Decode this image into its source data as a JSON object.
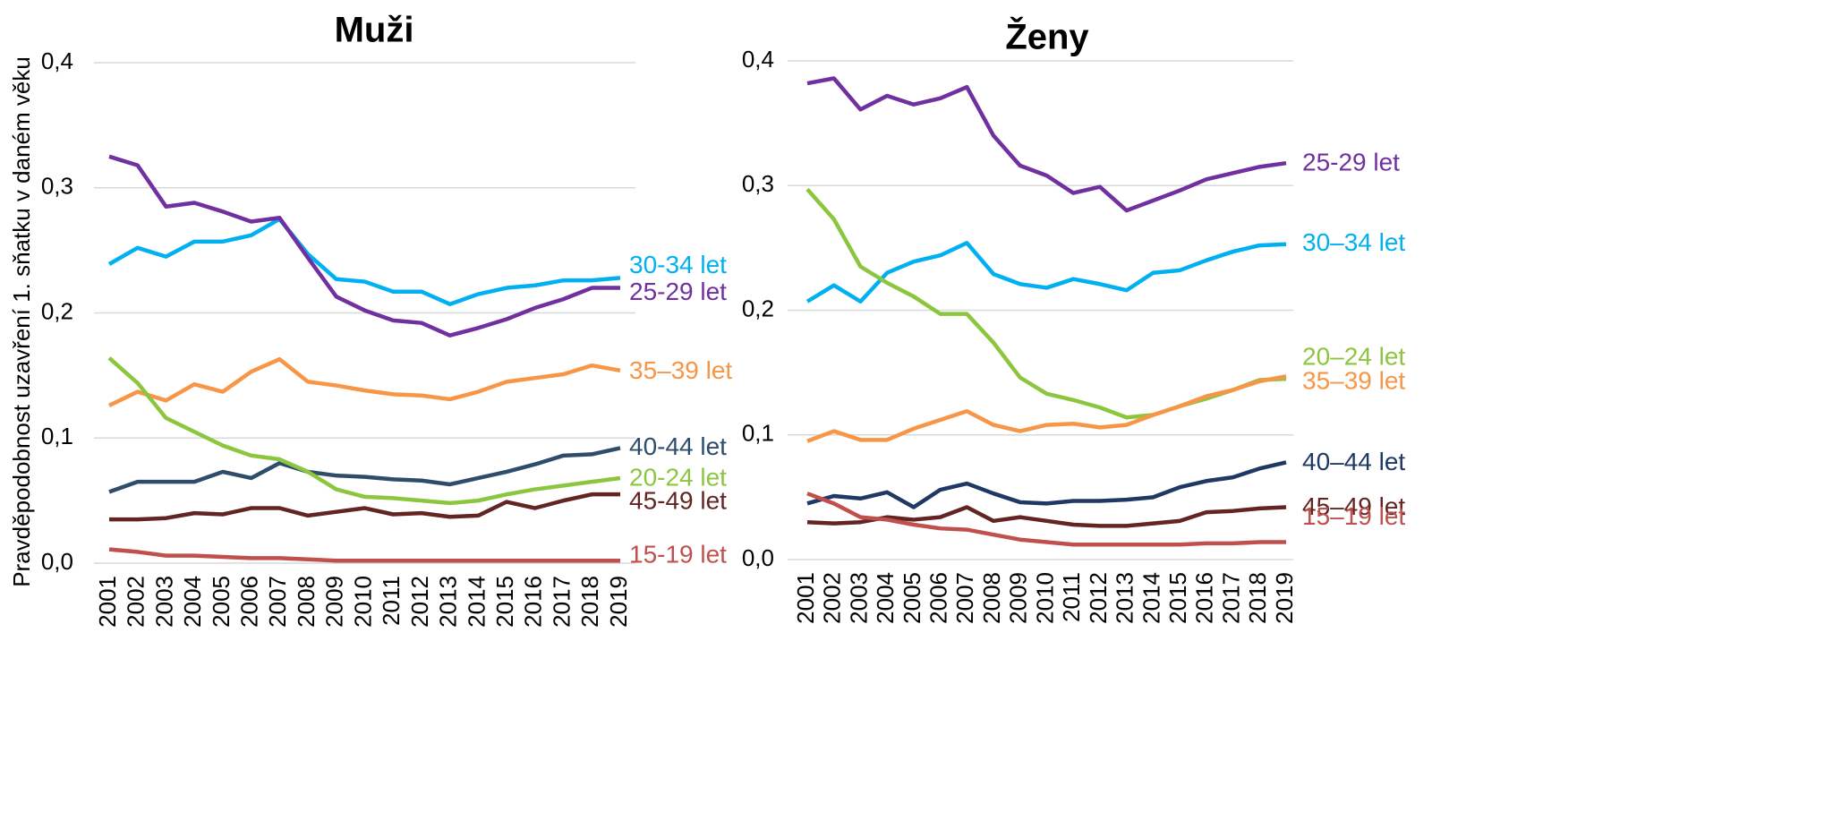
{
  "chart_data": [
    {
      "type": "line",
      "title": "Muži",
      "y_label": "Pravděpodobnost uzavření 1. sňatku v daném věku",
      "categories": [
        "2001",
        "2002",
        "2003",
        "2004",
        "2005",
        "2006",
        "2007",
        "2008",
        "2009",
        "2010",
        "2011",
        "2012",
        "2013",
        "2014",
        "2015",
        "2016",
        "2017",
        "2018",
        "2019"
      ],
      "ylim": [
        0,
        0.4
      ],
      "yticks": [
        {
          "value": 0,
          "label": "0,0"
        },
        {
          "value": 0.1,
          "label": "0,1"
        },
        {
          "value": 0.2,
          "label": "0,2"
        },
        {
          "value": 0.3,
          "label": "0,3"
        },
        {
          "value": 0.4,
          "label": "0,4"
        }
      ],
      "grid": true,
      "series": [
        {
          "name": "30-34 let",
          "color": "#00b0f0",
          "values": [
            0.239,
            0.252,
            0.245,
            0.257,
            0.257,
            0.262,
            0.275,
            0.247,
            0.227,
            0.225,
            0.217,
            0.217,
            0.207,
            0.215,
            0.22,
            0.222,
            0.226,
            0.226,
            0.228
          ]
        },
        {
          "name": "25-29 let",
          "color": "#7030a0",
          "values": [
            0.325,
            0.318,
            0.285,
            0.288,
            0.281,
            0.273,
            0.276,
            0.244,
            0.213,
            0.202,
            0.194,
            0.192,
            0.182,
            0.188,
            0.195,
            0.204,
            0.211,
            0.22,
            0.22
          ]
        },
        {
          "name": "35–39 let",
          "color": "#f79646",
          "values": [
            0.126,
            0.137,
            0.13,
            0.143,
            0.137,
            0.153,
            0.163,
            0.145,
            0.142,
            0.138,
            0.135,
            0.134,
            0.131,
            0.137,
            0.145,
            0.148,
            0.151,
            0.158,
            0.154
          ]
        },
        {
          "name": "40-44 let",
          "color": "#2e4d6b",
          "values": [
            0.057,
            0.065,
            0.065,
            0.065,
            0.073,
            0.068,
            0.08,
            0.073,
            0.07,
            0.069,
            0.067,
            0.066,
            0.063,
            0.068,
            0.073,
            0.079,
            0.086,
            0.087,
            0.092
          ]
        },
        {
          "name": "20-24 let",
          "color": "#8cc63f",
          "values": [
            0.164,
            0.144,
            0.116,
            0.105,
            0.094,
            0.086,
            0.083,
            0.073,
            0.059,
            0.053,
            0.052,
            0.05,
            0.048,
            0.05,
            0.055,
            0.059,
            0.062,
            0.065,
            0.068
          ]
        },
        {
          "name": "45-49 let",
          "color": "#632523",
          "values": [
            0.035,
            0.035,
            0.036,
            0.04,
            0.039,
            0.044,
            0.044,
            0.038,
            0.041,
            0.044,
            0.039,
            0.04,
            0.037,
            0.038,
            0.049,
            0.044,
            0.05,
            0.055,
            0.055
          ]
        },
        {
          "name": "15-19 let",
          "color": "#c0504d",
          "values": [
            0.011,
            0.009,
            0.006,
            0.006,
            0.005,
            0.004,
            0.004,
            0.003,
            0.002,
            0.002,
            0.002,
            0.002,
            0.002,
            0.002,
            0.002,
            0.002,
            0.002,
            0.002,
            0.002
          ]
        }
      ]
    },
    {
      "type": "line",
      "title": "Ženy",
      "categories": [
        "2001",
        "2002",
        "2003",
        "2004",
        "2005",
        "2006",
        "2007",
        "2008",
        "2009",
        "2010",
        "2011",
        "2012",
        "2013",
        "2014",
        "2015",
        "2016",
        "2017",
        "2018",
        "2019"
      ],
      "ylim": [
        0,
        0.4
      ],
      "yticks": [
        {
          "value": 0,
          "label": "0,0"
        },
        {
          "value": 0.1,
          "label": "0,1"
        },
        {
          "value": 0.2,
          "label": "0,2"
        },
        {
          "value": 0.3,
          "label": "0,3"
        },
        {
          "value": 0.4,
          "label": "0,4"
        }
      ],
      "grid": true,
      "series": [
        {
          "name": "25-29 let",
          "color": "#7030a0",
          "values": [
            0.382,
            0.386,
            0.361,
            0.372,
            0.365,
            0.37,
            0.379,
            0.34,
            0.316,
            0.308,
            0.294,
            0.299,
            0.28,
            0.288,
            0.296,
            0.305,
            0.31,
            0.315,
            0.318
          ]
        },
        {
          "name": "30–34 let",
          "color": "#00b0f0",
          "values": [
            0.207,
            0.22,
            0.207,
            0.23,
            0.239,
            0.244,
            0.254,
            0.229,
            0.221,
            0.218,
            0.225,
            0.221,
            0.216,
            0.23,
            0.232,
            0.24,
            0.247,
            0.252,
            0.253
          ]
        },
        {
          "name": "20–24 let",
          "color": "#8cc63f",
          "values": [
            0.297,
            0.273,
            0.235,
            0.222,
            0.211,
            0.197,
            0.197,
            0.174,
            0.146,
            0.133,
            0.128,
            0.122,
            0.114,
            0.116,
            0.123,
            0.129,
            0.136,
            0.144,
            0.145
          ]
        },
        {
          "name": "35–39 let",
          "color": "#f79646",
          "values": [
            0.095,
            0.103,
            0.096,
            0.096,
            0.105,
            0.112,
            0.119,
            0.108,
            0.103,
            0.108,
            0.109,
            0.106,
            0.108,
            0.116,
            0.123,
            0.131,
            0.136,
            0.143,
            0.147
          ]
        },
        {
          "name": "40–44 let",
          "color": "#1f3864",
          "values": [
            0.045,
            0.051,
            0.049,
            0.054,
            0.042,
            0.056,
            0.061,
            0.053,
            0.046,
            0.045,
            0.047,
            0.047,
            0.048,
            0.05,
            0.058,
            0.063,
            0.066,
            0.073,
            0.078
          ]
        },
        {
          "name": "45–49 let",
          "color": "#632523",
          "values": [
            0.03,
            0.029,
            0.03,
            0.034,
            0.032,
            0.034,
            0.042,
            0.031,
            0.034,
            0.031,
            0.028,
            0.027,
            0.027,
            0.029,
            0.031,
            0.038,
            0.039,
            0.041,
            0.042
          ]
        },
        {
          "name": "15–19 let",
          "color": "#c0504d",
          "values": [
            0.053,
            0.045,
            0.034,
            0.032,
            0.028,
            0.025,
            0.024,
            0.02,
            0.016,
            0.014,
            0.012,
            0.012,
            0.012,
            0.012,
            0.012,
            0.013,
            0.013,
            0.014,
            0.014
          ]
        }
      ]
    }
  ]
}
